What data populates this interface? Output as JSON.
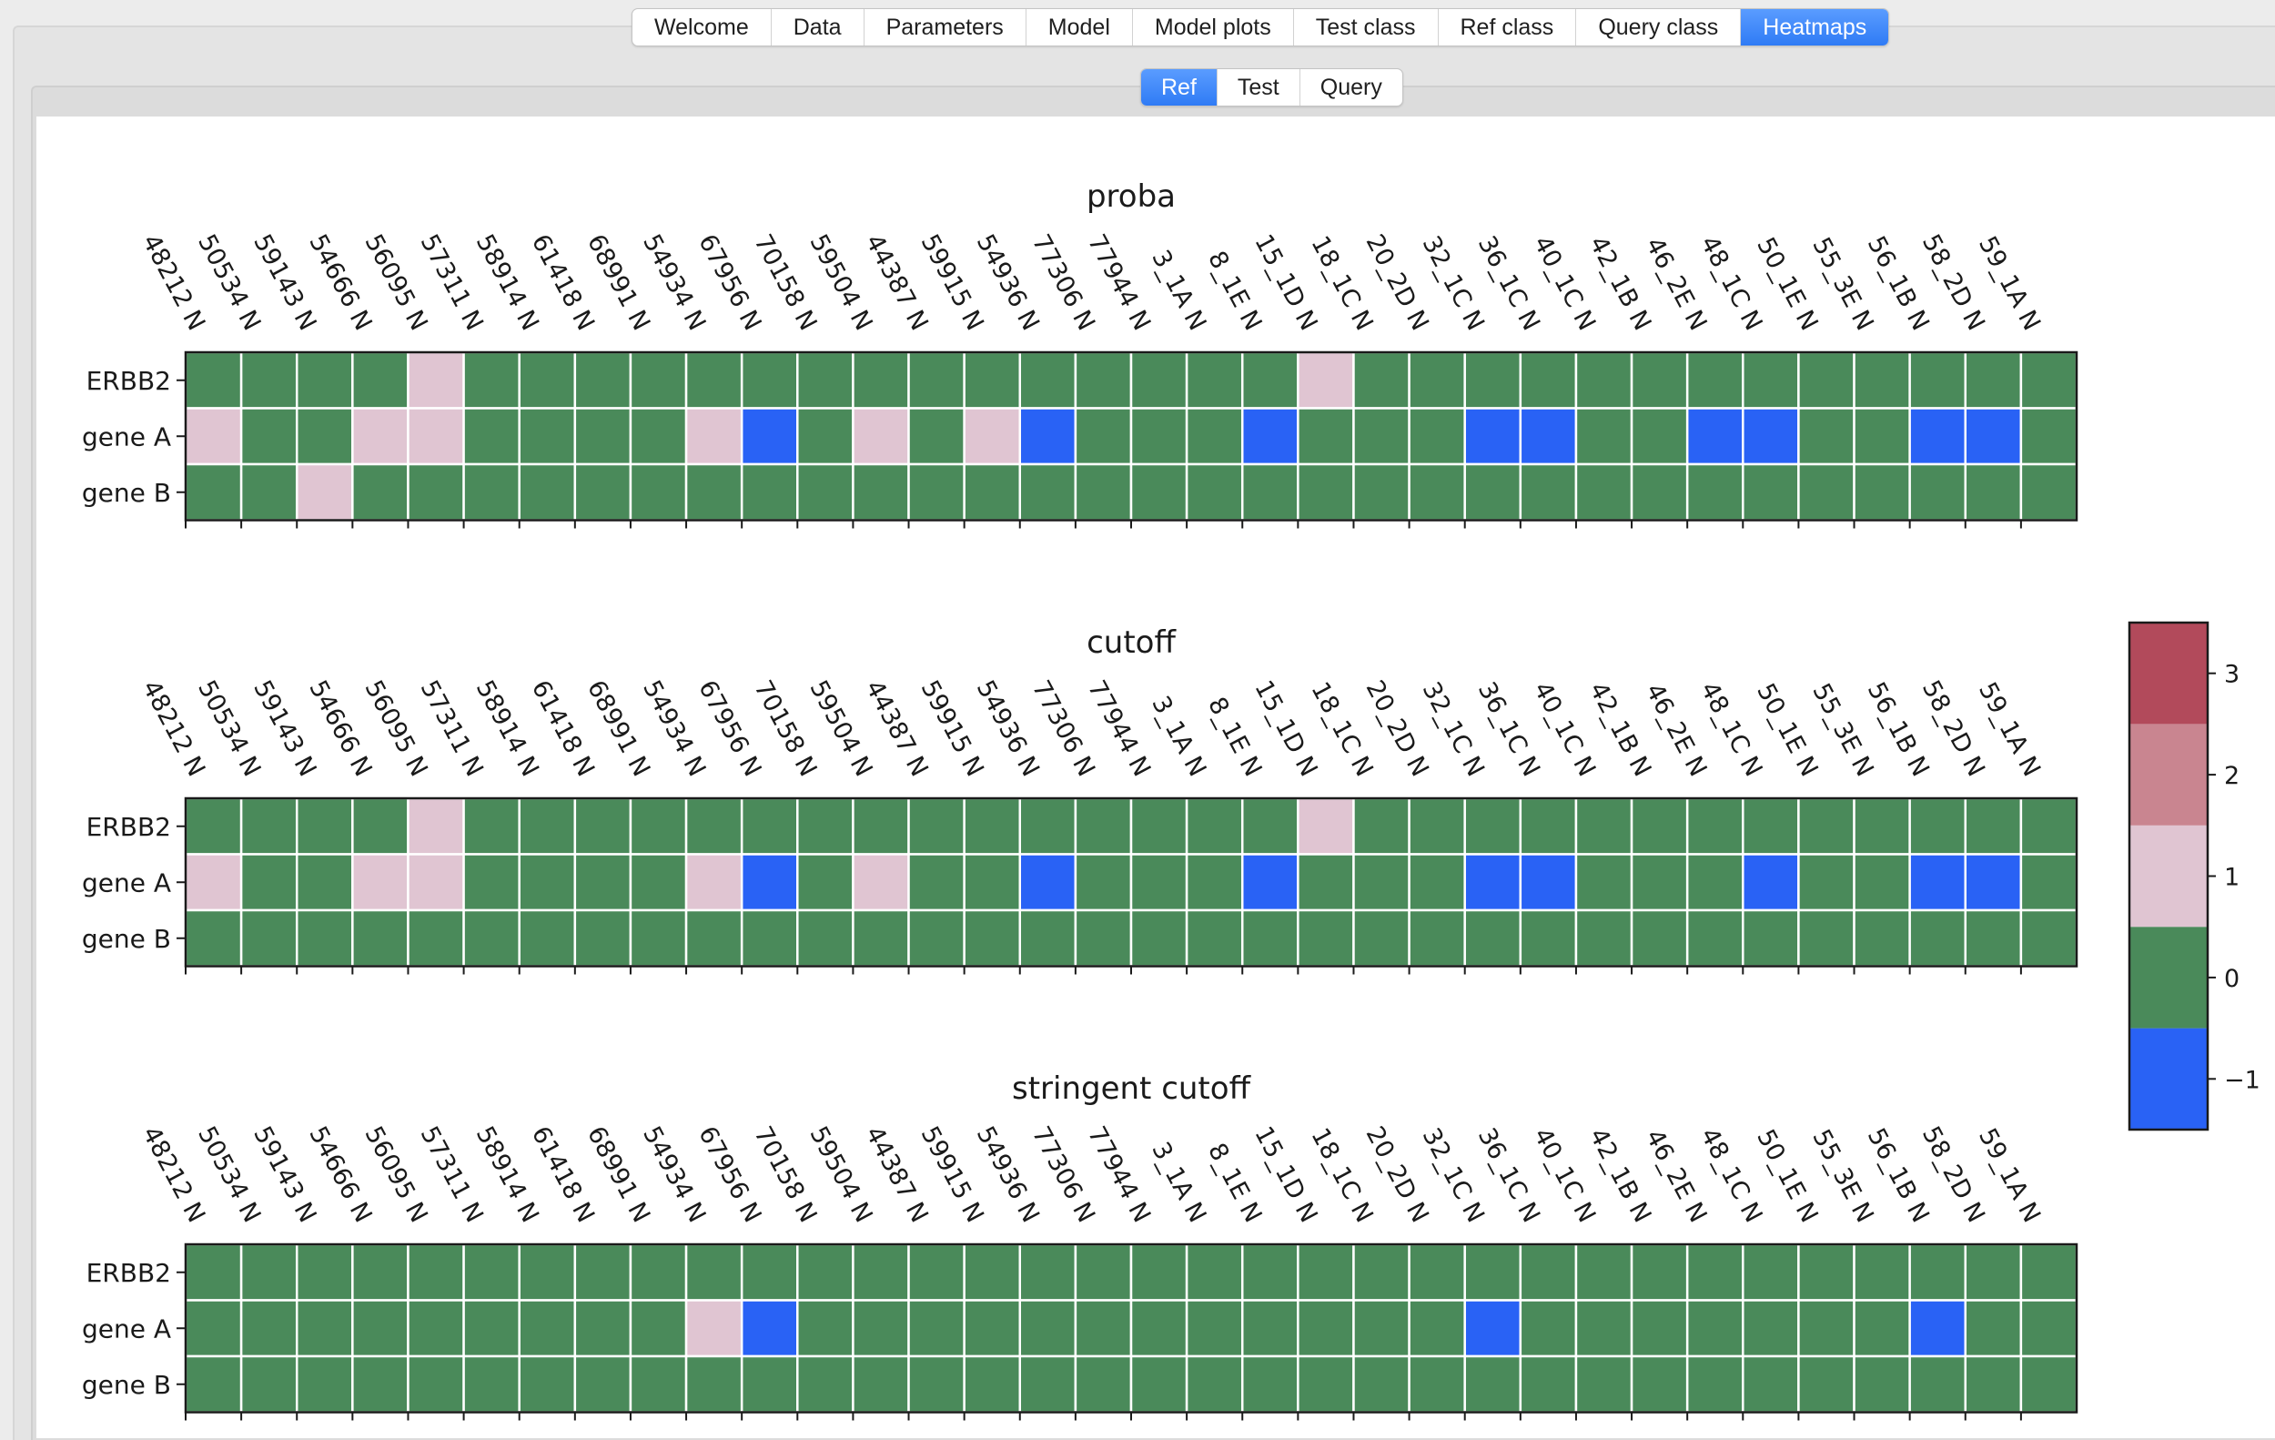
{
  "tabs_main": [
    {
      "label": "Welcome"
    },
    {
      "label": "Data"
    },
    {
      "label": "Parameters"
    },
    {
      "label": "Model"
    },
    {
      "label": "Model plots"
    },
    {
      "label": "Test class"
    },
    {
      "label": "Ref class"
    },
    {
      "label": "Query class"
    },
    {
      "label": "Heatmaps",
      "active": true
    }
  ],
  "tabs_sub": [
    {
      "label": "Ref",
      "active": true
    },
    {
      "label": "Test"
    },
    {
      "label": "Query"
    }
  ],
  "chart_data": {
    "type": "heatmap",
    "samples": [
      "48212 N",
      "50534 N",
      "59143 N",
      "54666 N",
      "56095 N",
      "57311 N",
      "58914 N",
      "61418 N",
      "68991 N",
      "54934 N",
      "67956 N",
      "70158 N",
      "59504 N",
      "44387 N",
      "59915 N",
      "54936 N",
      "77306 N",
      "77944 N",
      "3_1A N",
      "8_1E N",
      "15_1D N",
      "18_1C N",
      "20_2D N",
      "32_1C N",
      "36_1C N",
      "40_1C N",
      "42_1B N",
      "46_2E N",
      "48_1C N",
      "50_1E N",
      "55_3E N",
      "56_1B N",
      "58_2D N",
      "59_1A N"
    ],
    "genes": [
      "ERBB2",
      "gene A",
      "gene B"
    ],
    "panels": [
      {
        "title": "proba",
        "values": [
          [
            0,
            0,
            0,
            0,
            1,
            0,
            0,
            0,
            0,
            0,
            0,
            0,
            0,
            0,
            0,
            0,
            0,
            0,
            0,
            0,
            1,
            0,
            0,
            0,
            0,
            0,
            0,
            0,
            0,
            0,
            0,
            0,
            0,
            0
          ],
          [
            1,
            0,
            0,
            1,
            1,
            0,
            0,
            0,
            0,
            1,
            -1,
            0,
            1,
            0,
            1,
            -1,
            0,
            0,
            0,
            -1,
            0,
            0,
            0,
            -1,
            -1,
            0,
            0,
            -1,
            -1,
            0,
            0,
            -1,
            -1,
            0
          ],
          [
            0,
            0,
            1,
            0,
            0,
            0,
            0,
            0,
            0,
            0,
            0,
            0,
            0,
            0,
            0,
            0,
            0,
            0,
            0,
            0,
            0,
            0,
            0,
            0,
            0,
            0,
            0,
            0,
            0,
            0,
            0,
            0,
            0,
            0
          ]
        ]
      },
      {
        "title": "cutoff",
        "values": [
          [
            0,
            0,
            0,
            0,
            1,
            0,
            0,
            0,
            0,
            0,
            0,
            0,
            0,
            0,
            0,
            0,
            0,
            0,
            0,
            0,
            1,
            0,
            0,
            0,
            0,
            0,
            0,
            0,
            0,
            0,
            0,
            0,
            0,
            0
          ],
          [
            1,
            0,
            0,
            1,
            1,
            0,
            0,
            0,
            0,
            1,
            -1,
            0,
            1,
            0,
            0,
            -1,
            0,
            0,
            0,
            -1,
            0,
            0,
            0,
            -1,
            -1,
            0,
            0,
            0,
            -1,
            0,
            0,
            -1,
            -1,
            0
          ],
          [
            0,
            0,
            0,
            0,
            0,
            0,
            0,
            0,
            0,
            0,
            0,
            0,
            0,
            0,
            0,
            0,
            0,
            0,
            0,
            0,
            0,
            0,
            0,
            0,
            0,
            0,
            0,
            0,
            0,
            0,
            0,
            0,
            0,
            0
          ]
        ]
      },
      {
        "title": "stringent cutoff",
        "values": [
          [
            0,
            0,
            0,
            0,
            0,
            0,
            0,
            0,
            0,
            0,
            0,
            0,
            0,
            0,
            0,
            0,
            0,
            0,
            0,
            0,
            0,
            0,
            0,
            0,
            0,
            0,
            0,
            0,
            0,
            0,
            0,
            0,
            0,
            0
          ],
          [
            0,
            0,
            0,
            0,
            0,
            0,
            0,
            0,
            0,
            1,
            -1,
            0,
            0,
            0,
            0,
            0,
            0,
            0,
            0,
            0,
            0,
            0,
            0,
            -1,
            0,
            0,
            0,
            0,
            0,
            0,
            0,
            -1,
            0,
            0
          ],
          [
            0,
            0,
            0,
            0,
            0,
            0,
            0,
            0,
            0,
            0,
            0,
            0,
            0,
            0,
            0,
            0,
            0,
            0,
            0,
            0,
            0,
            0,
            0,
            0,
            0,
            0,
            0,
            0,
            0,
            0,
            0,
            0,
            0,
            0
          ]
        ]
      }
    ],
    "colorbar": {
      "levels": [
        -1,
        0,
        1,
        2,
        3
      ],
      "colors": [
        "#2962f5",
        "#4a8a5a",
        "#e0c5d2",
        "#c98590",
        "#b24a5b"
      ],
      "ticks": [
        "−1",
        "0",
        "1",
        "2",
        "3"
      ]
    },
    "grid_color": "#ffffff"
  }
}
